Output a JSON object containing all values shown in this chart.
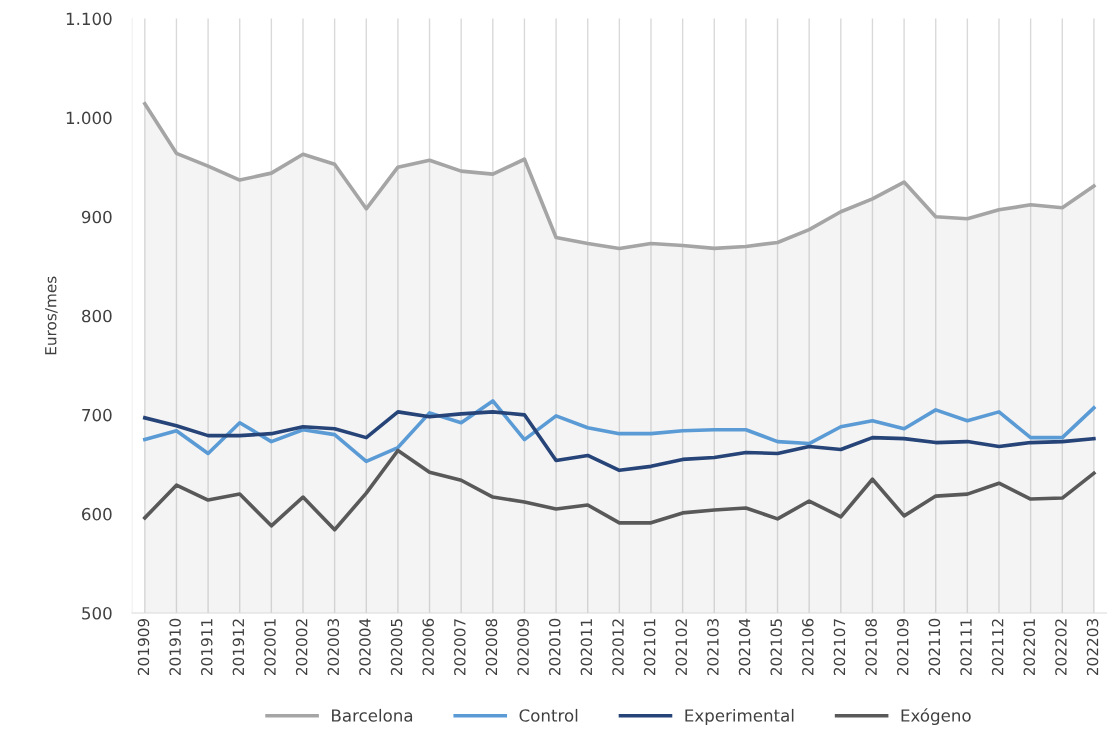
{
  "chart_data": {
    "type": "line",
    "ylabel": "Euros/mes",
    "categories": [
      "201909",
      "201910",
      "201911",
      "201912",
      "202001",
      "202002",
      "202003",
      "202004",
      "202005",
      "202006",
      "202007",
      "202008",
      "202009",
      "202010",
      "202011",
      "202012",
      "202101",
      "202102",
      "202103",
      "202104",
      "202105",
      "202106",
      "202107",
      "202108",
      "202109",
      "202110",
      "202111",
      "202112",
      "202201",
      "202202",
      "202203"
    ],
    "series": [
      {
        "name": "Barcelona",
        "type": "area",
        "color": "#a5a5a5",
        "values": [
          1014,
          964,
          951,
          937,
          944,
          963,
          953,
          908,
          950,
          957,
          946,
          943,
          958,
          879,
          873,
          868,
          873,
          871,
          868,
          870,
          874,
          887,
          905,
          918,
          935,
          900,
          898,
          907,
          912,
          909,
          931
        ]
      },
      {
        "name": "Control",
        "color": "#5b9bd5",
        "values": [
          675,
          684,
          661,
          692,
          673,
          685,
          680,
          653,
          667,
          702,
          692,
          714,
          675,
          699,
          687,
          681,
          681,
          684,
          685,
          685,
          673,
          671,
          688,
          694,
          686,
          705,
          694,
          703,
          677,
          677,
          707
        ]
      },
      {
        "name": "Experimental",
        "color": "#264478",
        "values": [
          697,
          689,
          679,
          679,
          681,
          688,
          686,
          677,
          703,
          698,
          701,
          703,
          700,
          654,
          659,
          644,
          648,
          655,
          657,
          662,
          661,
          668,
          665,
          677,
          676,
          672,
          673,
          668,
          672,
          673,
          676
        ]
      },
      {
        "name": "Exógeno",
        "color": "#595959",
        "values": [
          596,
          629,
          614,
          620,
          588,
          617,
          584,
          621,
          664,
          642,
          634,
          617,
          612,
          605,
          609,
          591,
          591,
          601,
          604,
          606,
          595,
          613,
          597,
          635,
          598,
          618,
          620,
          631,
          615,
          616,
          641
        ]
      }
    ],
    "ylim": [
      500,
      1100
    ],
    "yticks": [
      500,
      600,
      700,
      800,
      900,
      {
        "value": 1000,
        "label": "1.000"
      },
      {
        "value": 1100,
        "label": "1.100"
      }
    ],
    "grid": "x",
    "legend": "bottom",
    "marker": "none",
    "line_style": "solid"
  }
}
